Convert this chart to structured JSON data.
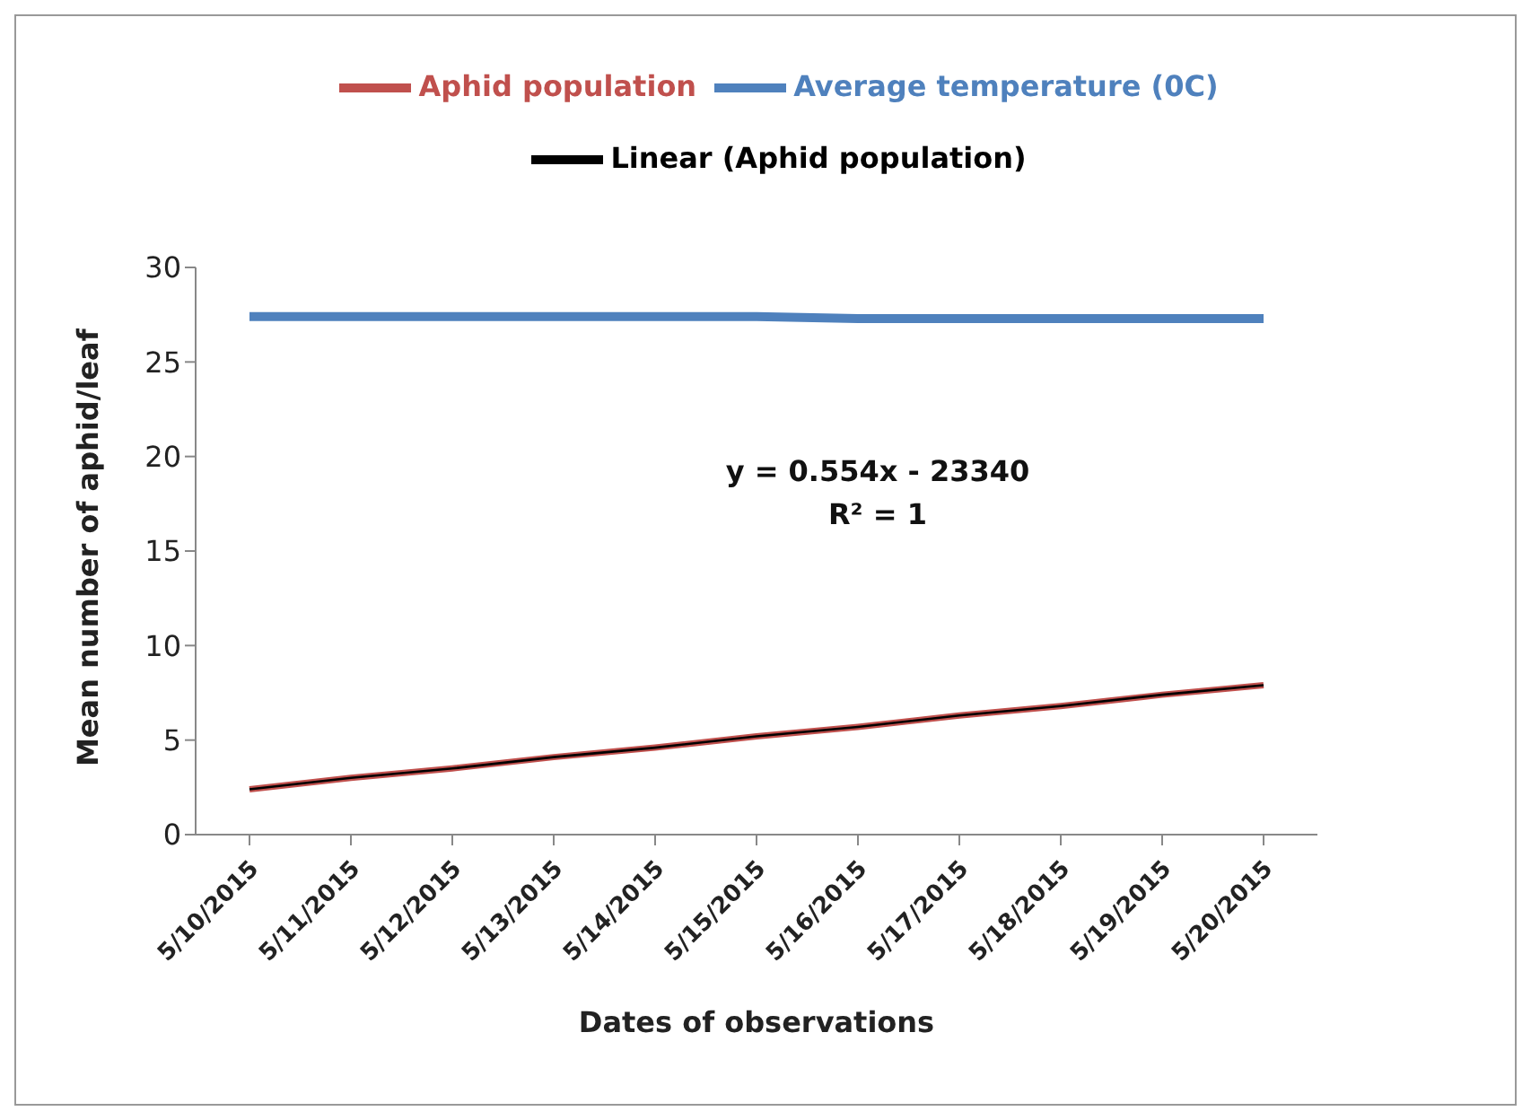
{
  "chart_data": {
    "type": "line",
    "xlabel": "Dates of observations",
    "ylabel": "Mean number of aphid/leaf",
    "categories": [
      "5/10/2015",
      "5/11/2015",
      "5/12/2015",
      "5/13/2015",
      "5/14/2015",
      "5/15/2015",
      "5/16/2015",
      "5/17/2015",
      "5/18/2015",
      "5/19/2015",
      "5/20/2015"
    ],
    "series": [
      {
        "name": "Average temperature (0C)",
        "color": "#4f81bd",
        "values": [
          27.4,
          27.4,
          27.4,
          27.4,
          27.4,
          27.4,
          27.3,
          27.3,
          27.3,
          27.3,
          27.3
        ]
      },
      {
        "name": "Aphid population",
        "color": "#c0504d",
        "values": [
          2.4,
          3.0,
          3.5,
          4.1,
          4.6,
          5.2,
          5.7,
          6.3,
          6.8,
          7.4,
          7.9
        ]
      },
      {
        "name": "Linear (Aphid population)",
        "color": "#000000",
        "values": [
          2.4,
          3.0,
          3.5,
          4.1,
          4.6,
          5.2,
          5.7,
          6.3,
          6.8,
          7.4,
          7.9
        ]
      }
    ],
    "ylim": [
      0,
      30
    ],
    "yticks": [
      0,
      5,
      10,
      15,
      20,
      25,
      30
    ],
    "grid": false,
    "legend": "top",
    "marker": "none",
    "annotations": [
      "y = 0.554x - 23340",
      "R² = 1"
    ]
  }
}
